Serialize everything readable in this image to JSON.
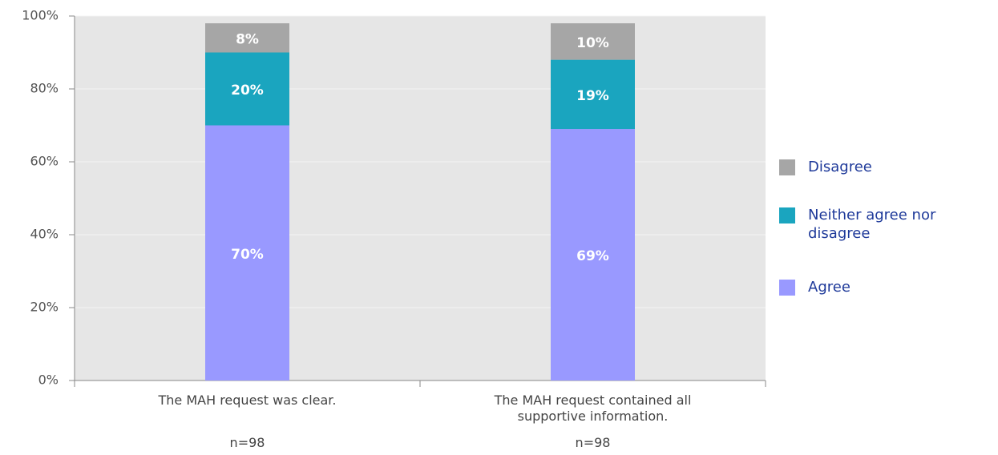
{
  "chart_data": {
    "type": "stacked_bar",
    "categories": [
      "The MAH request was clear.",
      "The MAH request contained all supportive information."
    ],
    "category_notes": [
      "n=98",
      "n=98"
    ],
    "series": [
      {
        "name": "Agree",
        "color": "#9999ff",
        "values": [
          70,
          69
        ],
        "value_labels": [
          "70%",
          "69%"
        ]
      },
      {
        "name": "Neither agree nor disagree",
        "color": "#1aa5bf",
        "values": [
          20,
          19
        ],
        "value_labels": [
          "20%",
          "19%"
        ]
      },
      {
        "name": "Disagree",
        "color": "#a6a6a6",
        "values": [
          8,
          10
        ],
        "value_labels": [
          "8%",
          "10%"
        ]
      }
    ],
    "ylim": [
      0,
      100
    ],
    "yticks": [
      {
        "value": 0,
        "label": "0%"
      },
      {
        "value": 20,
        "label": "20%"
      },
      {
        "value": 40,
        "label": "40%"
      },
      {
        "value": 60,
        "label": "60%"
      },
      {
        "value": 80,
        "label": "80%"
      },
      {
        "value": 100,
        "label": "100%"
      }
    ],
    "grid": true,
    "legend": "right"
  }
}
